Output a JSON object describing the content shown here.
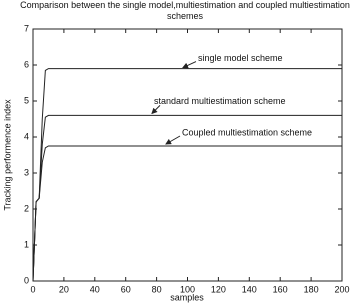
{
  "chart_data": {
    "type": "line",
    "title": "Comparison between the single model,multiestimation and coupled multiestimation schemes",
    "xlabel": "samples",
    "ylabel": "Tracking performence index",
    "x": [
      0,
      2,
      4,
      6,
      8,
      10,
      200
    ],
    "series": [
      {
        "name": "single model scheme",
        "color": "#222222",
        "values": [
          0,
          2.2,
          2.3,
          4.5,
          5.85,
          5.9,
          5.9
        ]
      },
      {
        "name": "standard multiestimation scheme",
        "color": "#222222",
        "values": [
          0,
          2.2,
          2.3,
          3.8,
          4.55,
          4.6,
          4.6
        ]
      },
      {
        "name": "Coupled multiestimation scheme",
        "color": "#222222",
        "values": [
          0,
          2.2,
          2.3,
          3.3,
          3.7,
          3.75,
          3.75
        ]
      }
    ],
    "xlim": [
      0,
      200
    ],
    "xticks": [
      0,
      20,
      40,
      60,
      80,
      100,
      120,
      140,
      160,
      180,
      200
    ],
    "ylim": [
      0,
      7
    ],
    "yticks": [
      0,
      1,
      2,
      3,
      4,
      5,
      6,
      7
    ]
  }
}
